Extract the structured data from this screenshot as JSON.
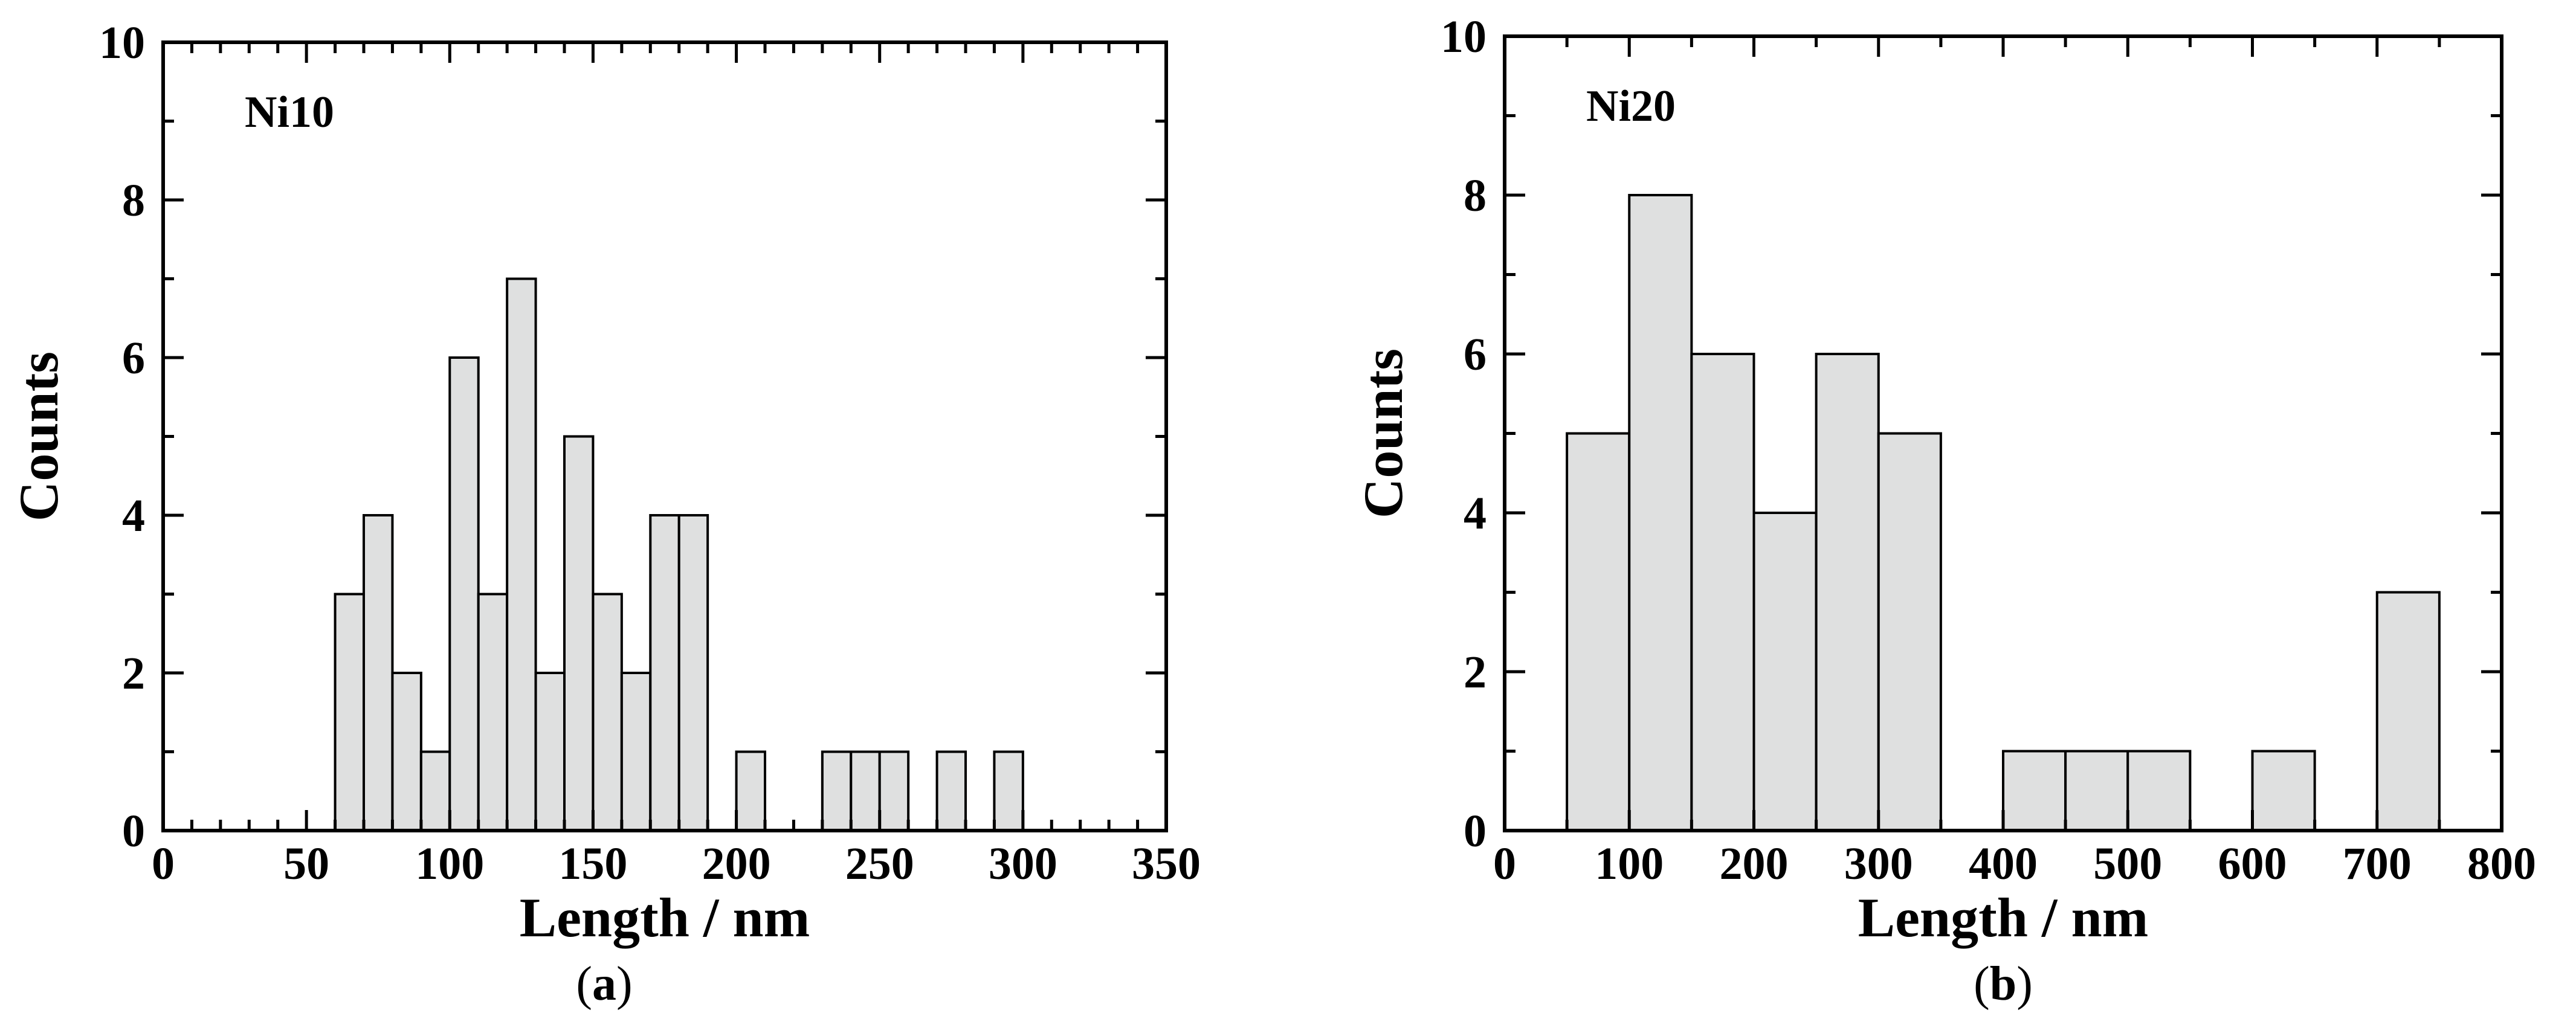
{
  "chart_data": [
    {
      "type": "bar",
      "id": "a",
      "annotation": "Ni10",
      "panel_label": "a",
      "xlabel": "Length / nm",
      "ylabel": "Counts",
      "xlim": [
        0,
        350
      ],
      "ylim": [
        0,
        10
      ],
      "xticks": [
        0,
        50,
        100,
        150,
        200,
        250,
        300,
        350
      ],
      "yticks": [
        0,
        2,
        4,
        6,
        8,
        10
      ],
      "x_minor_step": 10,
      "y_minor_step": 1,
      "bin_width": 10,
      "bins": [
        {
          "x0": 60,
          "x1": 70,
          "count": 3
        },
        {
          "x0": 70,
          "x1": 80,
          "count": 4
        },
        {
          "x0": 80,
          "x1": 90,
          "count": 2
        },
        {
          "x0": 90,
          "x1": 100,
          "count": 1
        },
        {
          "x0": 100,
          "x1": 110,
          "count": 6
        },
        {
          "x0": 110,
          "x1": 120,
          "count": 3
        },
        {
          "x0": 120,
          "x1": 130,
          "count": 7
        },
        {
          "x0": 130,
          "x1": 140,
          "count": 2
        },
        {
          "x0": 140,
          "x1": 150,
          "count": 5
        },
        {
          "x0": 150,
          "x1": 160,
          "count": 3
        },
        {
          "x0": 160,
          "x1": 170,
          "count": 2
        },
        {
          "x0": 170,
          "x1": 180,
          "count": 4
        },
        {
          "x0": 180,
          "x1": 190,
          "count": 4
        },
        {
          "x0": 200,
          "x1": 210,
          "count": 1
        },
        {
          "x0": 230,
          "x1": 240,
          "count": 1
        },
        {
          "x0": 240,
          "x1": 250,
          "count": 1
        },
        {
          "x0": 250,
          "x1": 260,
          "count": 1
        },
        {
          "x0": 270,
          "x1": 280,
          "count": 1
        },
        {
          "x0": 290,
          "x1": 300,
          "count": 1
        }
      ]
    },
    {
      "type": "bar",
      "id": "b",
      "annotation": "Ni20",
      "panel_label": "b",
      "xlabel": "Length / nm",
      "ylabel": "Counts",
      "xlim": [
        0,
        800
      ],
      "ylim": [
        0,
        10
      ],
      "xticks": [
        0,
        100,
        200,
        300,
        400,
        500,
        600,
        700,
        800
      ],
      "yticks": [
        0,
        2,
        4,
        6,
        8,
        10
      ],
      "x_minor_step": 50,
      "y_minor_step": 1,
      "bin_width": 50,
      "bins": [
        {
          "x0": 50,
          "x1": 100,
          "count": 5
        },
        {
          "x0": 100,
          "x1": 150,
          "count": 8
        },
        {
          "x0": 150,
          "x1": 200,
          "count": 6
        },
        {
          "x0": 200,
          "x1": 250,
          "count": 4
        },
        {
          "x0": 250,
          "x1": 300,
          "count": 6
        },
        {
          "x0": 300,
          "x1": 350,
          "count": 5
        },
        {
          "x0": 400,
          "x1": 450,
          "count": 1
        },
        {
          "x0": 450,
          "x1": 500,
          "count": 1
        },
        {
          "x0": 500,
          "x1": 550,
          "count": 1
        },
        {
          "x0": 600,
          "x1": 650,
          "count": 1
        },
        {
          "x0": 700,
          "x1": 750,
          "count": 3
        }
      ]
    }
  ]
}
